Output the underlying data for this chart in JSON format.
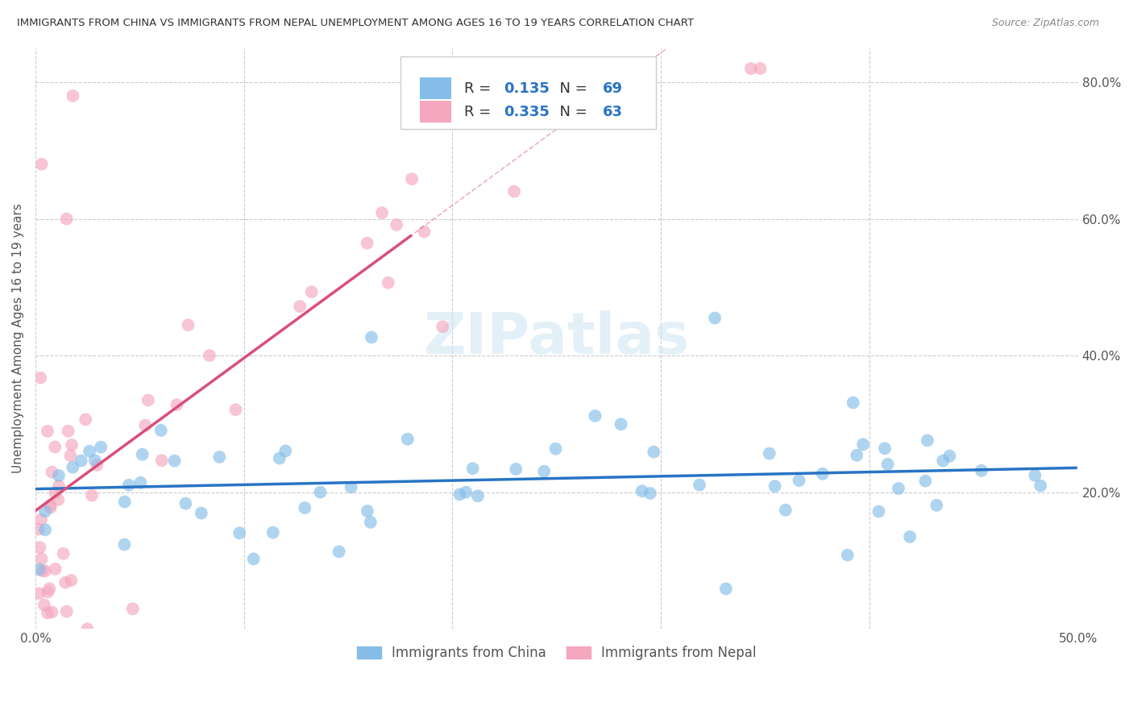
{
  "title": "IMMIGRANTS FROM CHINA VS IMMIGRANTS FROM NEPAL UNEMPLOYMENT AMONG AGES 16 TO 19 YEARS CORRELATION CHART",
  "source": "Source: ZipAtlas.com",
  "ylabel": "Unemployment Among Ages 16 to 19 years",
  "xlim": [
    0.0,
    0.5
  ],
  "ylim": [
    0.0,
    0.85
  ],
  "xtick_vals": [
    0.0,
    0.1,
    0.2,
    0.3,
    0.4,
    0.5
  ],
  "xtick_labels": [
    "0.0%",
    "",
    "",
    "",
    "",
    "50.0%"
  ],
  "ytick_vals": [
    0.0,
    0.2,
    0.4,
    0.6,
    0.8
  ],
  "ytick_labels_right": [
    "",
    "20.0%",
    "40.0%",
    "60.0%",
    "80.0%"
  ],
  "background_color": "#ffffff",
  "R_china": 0.135,
  "N_china": 69,
  "R_nepal": 0.335,
  "N_nepal": 63,
  "china_color": "#85bde8",
  "nepal_color": "#f4a7be",
  "china_line_color": "#2874c5",
  "nepal_line_color": "#d94f7a",
  "grid_color": "#cccccc",
  "title_color": "#333333",
  "legend_r_color": "#2874c5",
  "legend_n_color": "#2874c5"
}
